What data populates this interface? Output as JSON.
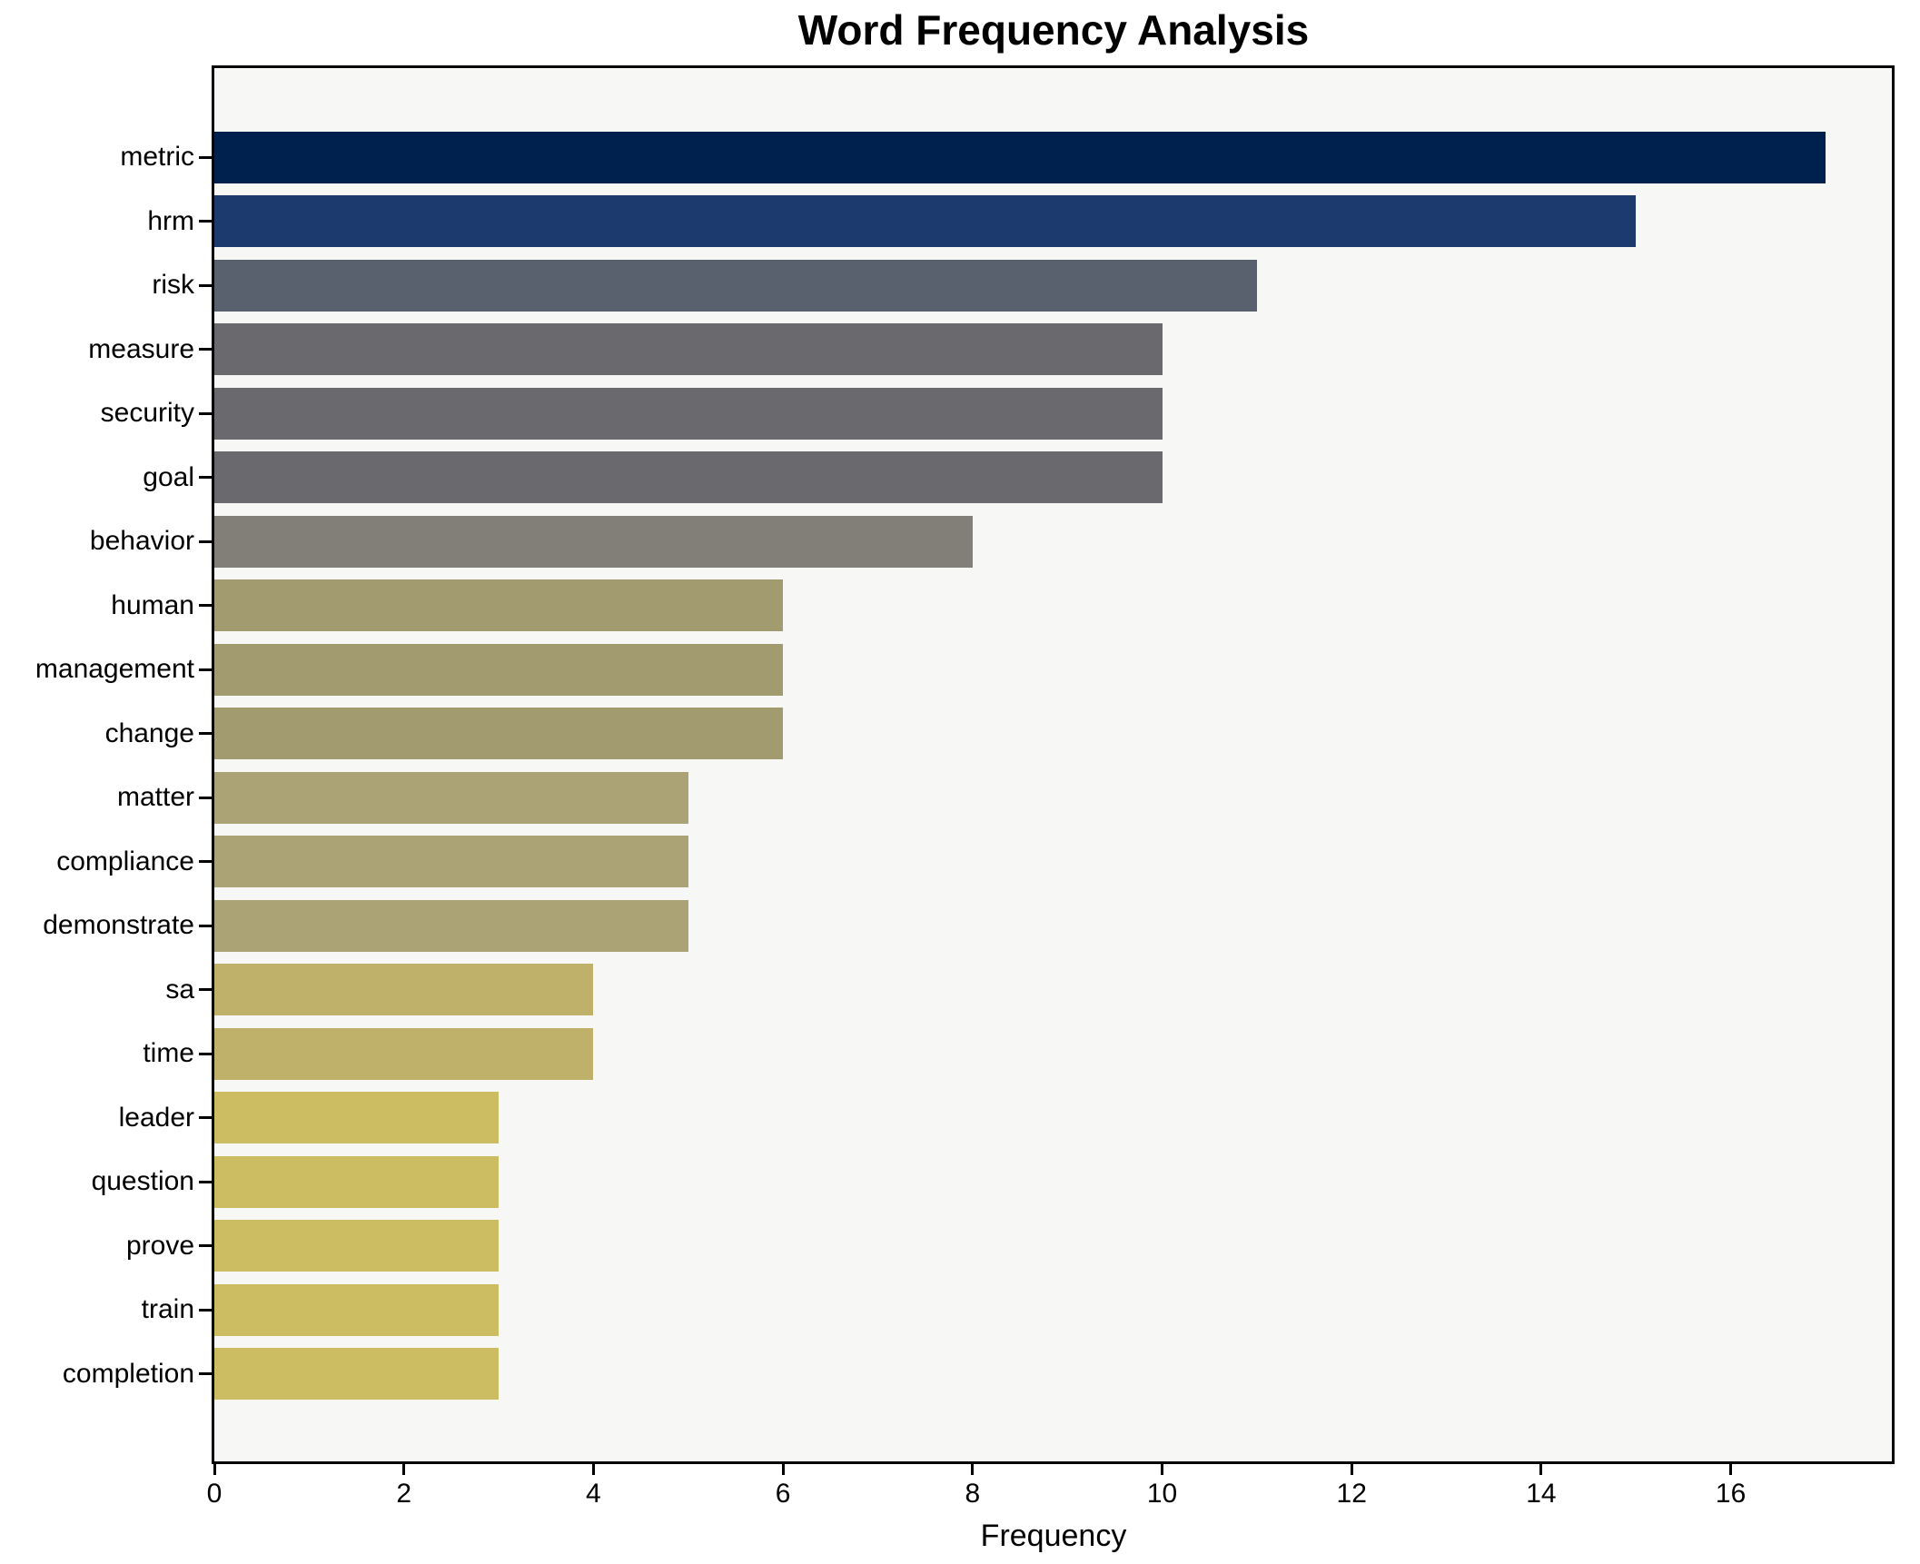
{
  "title": "Word Frequency Analysis",
  "xlabel": "Frequency",
  "colors": {
    "figure_background": "#ffffff",
    "plot_background": "#f7f7f6",
    "spine": "#000000",
    "text": "#000000"
  },
  "chart_data": {
    "type": "bar",
    "orientation": "horizontal",
    "title": "Word Frequency Analysis",
    "xlabel": "Frequency",
    "ylabel": "",
    "grid": false,
    "legend": false,
    "xlim": [
      0,
      17.7
    ],
    "xticks": [
      0,
      2,
      4,
      6,
      8,
      10,
      12,
      14,
      16
    ],
    "categories": [
      "metric",
      "hrm",
      "risk",
      "measure",
      "security",
      "goal",
      "behavior",
      "human",
      "management",
      "change",
      "matter",
      "compliance",
      "demonstrate",
      "sa",
      "time",
      "leader",
      "question",
      "prove",
      "train",
      "completion"
    ],
    "values": [
      17,
      15,
      11,
      10,
      10,
      10,
      8,
      6,
      6,
      6,
      5,
      5,
      5,
      4,
      4,
      3,
      3,
      3,
      3,
      3
    ],
    "bar_colors": [
      "#00214d",
      "#1c3a6e",
      "#59606e",
      "#6a6a6e",
      "#6a6a6e",
      "#6a6a6e",
      "#817f78",
      "#a39b70",
      "#a39b70",
      "#a39b70",
      "#aba375",
      "#aba375",
      "#aba375",
      "#bfb169",
      "#bfb169",
      "#cdbd62",
      "#cdbd62",
      "#cdbd62",
      "#cdbd62",
      "#cdbd62"
    ]
  }
}
